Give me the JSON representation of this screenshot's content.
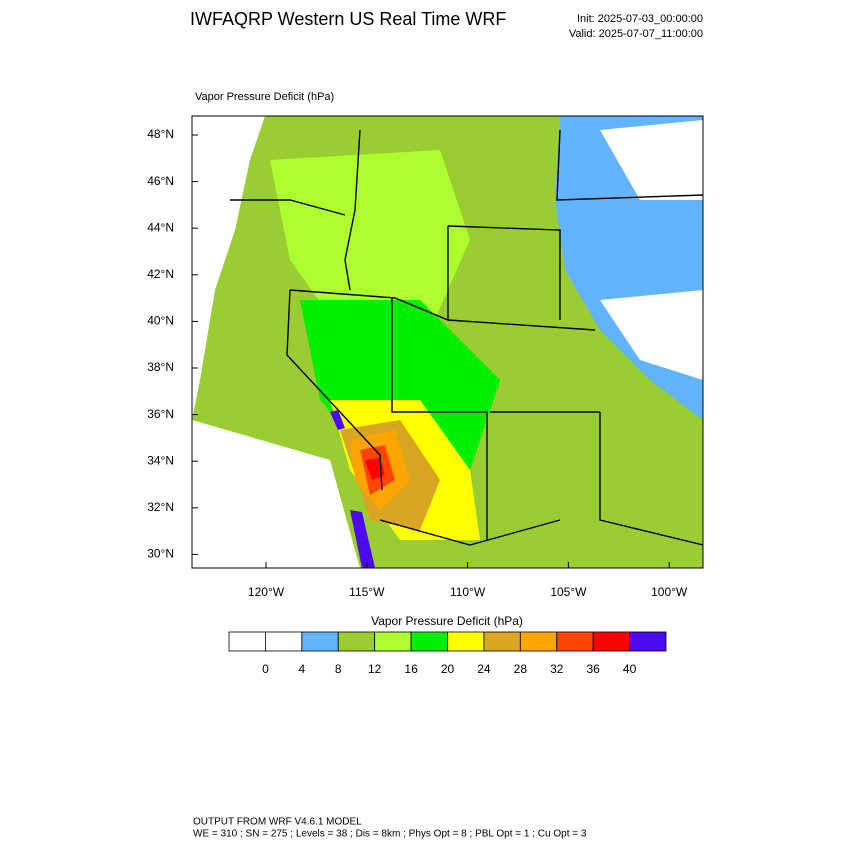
{
  "header": {
    "title": "IWFAQRP Western US Real Time WRF",
    "init": "Init: 2025-07-03_00:00:00",
    "valid": "Valid: 2025-07-07_11:00:00"
  },
  "map": {
    "subtitle": "Vapor Pressure Deficit   (hPa)",
    "lat_labels": [
      "48°N",
      "46°N",
      "44°N",
      "42°N",
      "40°N",
      "38°N",
      "36°N",
      "34°N",
      "32°N",
      "30°N"
    ],
    "lon_labels": [
      "120°W",
      "115°W",
      "110°W",
      "105°W",
      "100°W"
    ]
  },
  "colorbar": {
    "title": "Vapor Pressure Deficit  (hPa)",
    "colors": [
      "#ffffff",
      "#ffffff",
      "#63b4ff",
      "#9acd32",
      "#adff2f",
      "#00ee00",
      "#ffff00",
      "#daa520",
      "#ffa500",
      "#ff4500",
      "#ff0000",
      "#4b0af0"
    ],
    "labels": [
      0,
      4,
      8,
      12,
      16,
      20,
      24,
      28,
      32,
      36,
      40
    ]
  },
  "footer": {
    "line1": "OUTPUT FROM WRF V4.6.1 MODEL",
    "line2": "WE = 310 ; SN = 275 ; Levels = 38 ; Dis = 8km ; Phys Opt = 8 ; PBL Opt = 1 ; Cu Opt = 3"
  }
}
